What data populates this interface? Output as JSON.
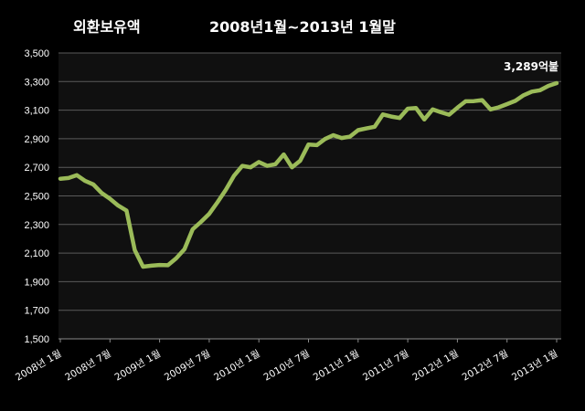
{
  "chart_data": {
    "type": "line",
    "title": "외환보유액",
    "subtitle": "2008년1월~2013년 1월말",
    "xlabel": "",
    "ylabel": "",
    "ylim": [
      1500,
      3500
    ],
    "yticks": [
      1500,
      1700,
      1900,
      2100,
      2300,
      2500,
      2700,
      2900,
      3100,
      3300,
      3500
    ],
    "ytick_labels": [
      "1,500",
      "1,700",
      "1,900",
      "2,100",
      "2,300",
      "2,500",
      "2,700",
      "2,900",
      "3,100",
      "3,300",
      "3,500"
    ],
    "xtick_labels": [
      {
        "index": 0,
        "label": "2008년 1월"
      },
      {
        "index": 6,
        "label": "2008년 7월"
      },
      {
        "index": 12,
        "label": "2009년 1월"
      },
      {
        "index": 18,
        "label": "2009년 7월"
      },
      {
        "index": 24,
        "label": "2010년 1월"
      },
      {
        "index": 30,
        "label": "2010년 7월"
      },
      {
        "index": 36,
        "label": "2011년 1월"
      },
      {
        "index": 42,
        "label": "2011년 7월"
      },
      {
        "index": 48,
        "label": "2012년 1월"
      },
      {
        "index": 54,
        "label": "2012년 7월"
      },
      {
        "index": 60,
        "label": "2013년 1월"
      }
    ],
    "grid": true,
    "legend": "none",
    "annotation": "3,289억불",
    "series": [
      {
        "values": [
          2620,
          2625,
          2645,
          2605,
          2580,
          2520,
          2480,
          2432,
          2397,
          2122,
          2005,
          2012,
          2017,
          2015,
          2063,
          2127,
          2267,
          2318,
          2375,
          2455,
          2542,
          2642,
          2710,
          2700,
          2737,
          2710,
          2722,
          2790,
          2700,
          2746,
          2860,
          2855,
          2898,
          2925,
          2905,
          2915,
          2960,
          2972,
          2984,
          3070,
          3055,
          3045,
          3110,
          3115,
          3035,
          3105,
          3085,
          3068,
          3117,
          3162,
          3163,
          3170,
          3105,
          3120,
          3142,
          3165,
          3204,
          3230,
          3239,
          3270,
          3289
        ],
        "color": "#9bbb59"
      }
    ]
  }
}
